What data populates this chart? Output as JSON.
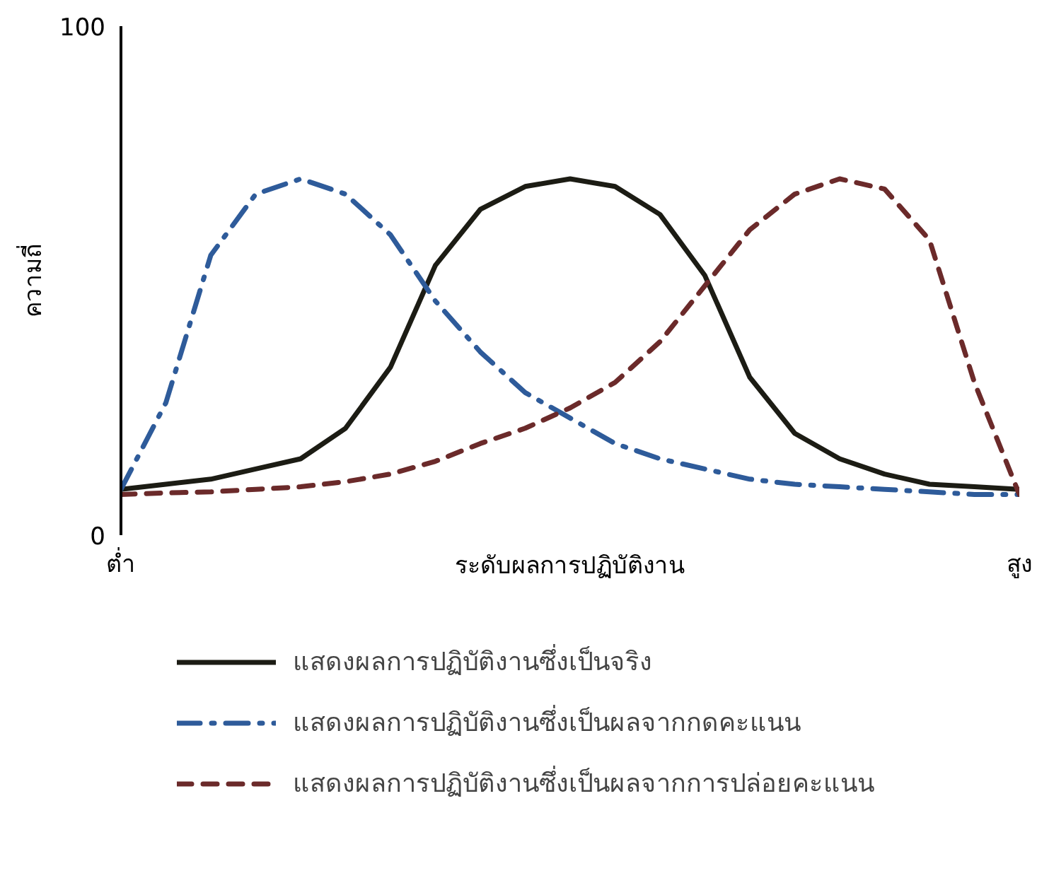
{
  "chart_data": {
    "type": "line",
    "xlabel": "ระดับผลการปฏิบัติงาน",
    "ylabel": "ความถี่",
    "ylim": [
      0,
      100
    ],
    "yticks": [
      0,
      100
    ],
    "legend": "bottom",
    "marker": "none",
    "categories": [
      "ต่ำ",
      null,
      null,
      null,
      null,
      null,
      null,
      null,
      null,
      null,
      null,
      null,
      null,
      null,
      null,
      null,
      null,
      null,
      null,
      null,
      "สูง"
    ],
    "series": [
      {
        "name": "แสดงผลการปฏิบัติงานซึ่งเป็นจริง",
        "color": "#1c1c14",
        "line_style": "solid",
        "values": [
          9,
          10,
          11,
          13,
          15,
          21,
          33,
          53,
          64,
          68.5,
          70,
          68.5,
          63,
          51,
          31,
          20,
          15,
          12,
          10,
          9.5,
          9
        ]
      },
      {
        "name": "แสดงผลการปฏิบัติงานซึ่งเป็นผลจากกดคะแนน",
        "color": "#2e5b9a",
        "line_style": "dashdot",
        "values": [
          9,
          26,
          55,
          67,
          70,
          67,
          59,
          46,
          36,
          28,
          23,
          18,
          15,
          13,
          11,
          10,
          9.5,
          9,
          8.5,
          8,
          8
        ]
      },
      {
        "name": "แสดงผลการปฏิบัติงานซึ่งเป็นผลจากการปล่อยคะแนน",
        "color": "#6b2a2a",
        "line_style": "dashed",
        "values": [
          8,
          8.3,
          8.5,
          9,
          9.5,
          10.5,
          12,
          14.5,
          18,
          21,
          25,
          30,
          38,
          49,
          60,
          67,
          70,
          68,
          58,
          30,
          8
        ]
      }
    ]
  }
}
